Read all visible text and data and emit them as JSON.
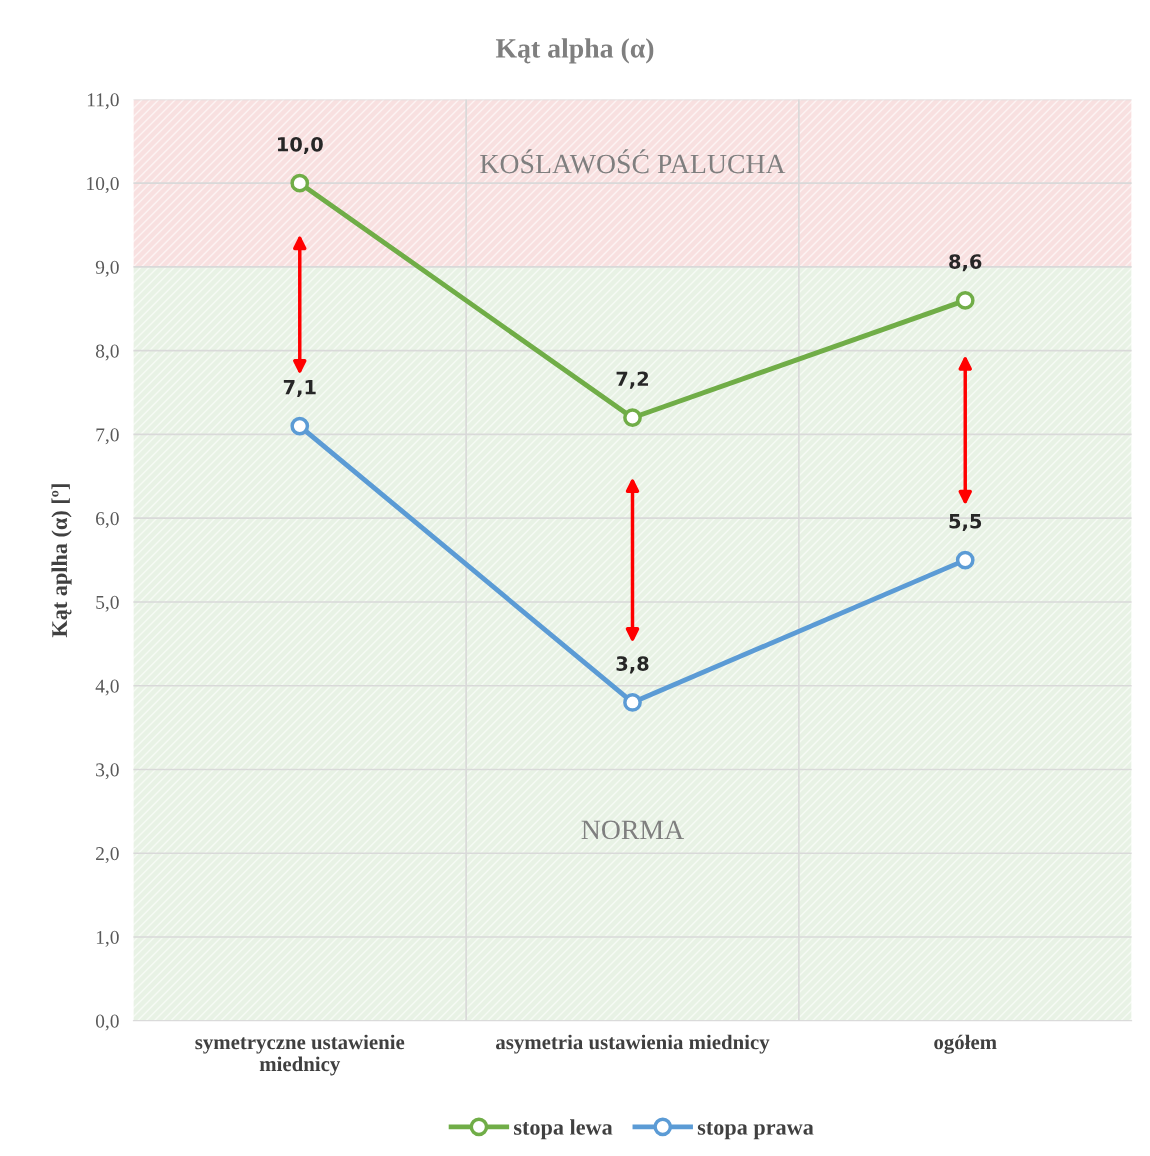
{
  "chart_data": {
    "type": "line",
    "title": "Kąt alpha (α)",
    "ylabel": "Kąt aplha (α) [º]",
    "categories": [
      "symetryczne ustawienie\nmiednicy",
      "asymetria ustawienia miednicy",
      "ogółem"
    ],
    "series": [
      {
        "name": "stopa lewa",
        "color": "#70ad47",
        "values": [
          10.0,
          7.2,
          8.6
        ],
        "value_labels": [
          "10,0",
          "7,2",
          "8,6"
        ]
      },
      {
        "name": "stopa prawa",
        "color": "#5b9bd5",
        "values": [
          7.1,
          3.8,
          5.5
        ],
        "value_labels": [
          "7,1",
          "3,8",
          "5,5"
        ]
      }
    ],
    "ylim": [
      0,
      11
    ],
    "yticks": [
      {
        "value": 0,
        "label": "0,0"
      },
      {
        "value": 1,
        "label": "1,0"
      },
      {
        "value": 2,
        "label": "2,0"
      },
      {
        "value": 3,
        "label": "3,0"
      },
      {
        "value": 4,
        "label": "4,0"
      },
      {
        "value": 5,
        "label": "5,0"
      },
      {
        "value": 6,
        "label": "6,0"
      },
      {
        "value": 7,
        "label": "7,0"
      },
      {
        "value": 8,
        "label": "8,0"
      },
      {
        "value": 9,
        "label": "9,0"
      },
      {
        "value": 10,
        "label": "10,0"
      },
      {
        "value": 11,
        "label": "11,0"
      }
    ],
    "bands": [
      {
        "axis": "y",
        "from": 9,
        "to": 11,
        "label": "KOŚLAWOŚĆ PALUCHA",
        "color": "#f4cccc"
      },
      {
        "axis": "y",
        "from": 0,
        "to": 9,
        "label": "NORMA",
        "color": "#d9ead3"
      }
    ],
    "grid": true,
    "legend": "bottom",
    "marker": "circle",
    "line_style": "solid"
  }
}
